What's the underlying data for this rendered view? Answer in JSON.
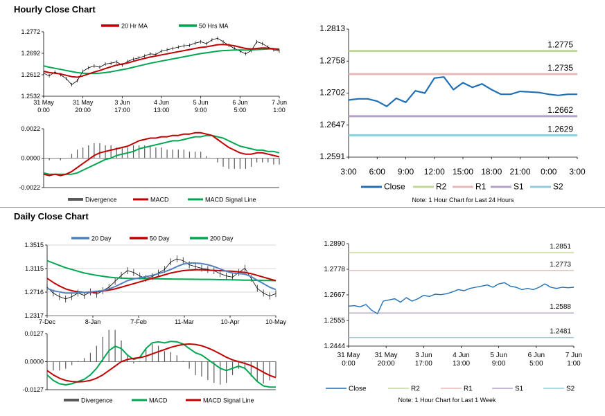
{
  "sections": {
    "hourly": "Hourly Close Chart",
    "daily": "Daily Close Chart"
  },
  "colors": {
    "ma_red": "#c00000",
    "ma_green": "#00a650",
    "ma_blue": "#4f81bd",
    "close_blue": "#1f6fb5",
    "r2": "#c3d69b",
    "r1": "#e6b9b8",
    "s1": "#b3a2c7",
    "s2": "#93cddd",
    "divergence": "#595959"
  },
  "chart_data": [
    {
      "id": "hourly-price",
      "type": "line",
      "title": "",
      "ylim": [
        1.2532,
        1.2772
      ],
      "yticks": [
        "1.2772",
        "1.2692",
        "1.2612",
        "1.2532"
      ],
      "xticks": [
        "31 May\n0:00",
        "31 May\n20:00",
        "3 Jun\n17:00",
        "4 Jun\n13:00",
        "5 Jun\n9:00",
        "6 Jun\n5:00",
        "7 Jun\n1:00"
      ],
      "legend": [
        "20 Hr MA",
        "50 Hrs MA"
      ],
      "legend_position": "top",
      "series": [
        {
          "name": "Price",
          "values": [
            1.2618,
            1.2608,
            1.2622,
            1.2612,
            1.2598,
            1.2575,
            1.259,
            1.2625,
            1.2638,
            1.2645,
            1.264,
            1.2652,
            1.2655,
            1.266,
            1.2648,
            1.2662,
            1.267,
            1.2675,
            1.2682,
            1.269,
            1.2688,
            1.27,
            1.2705,
            1.271,
            1.2715,
            1.272,
            1.2722,
            1.273,
            1.2735,
            1.2728,
            1.2742,
            1.2748,
            1.2735,
            1.2722,
            1.271,
            1.27,
            1.269,
            1.2702,
            1.2735,
            1.2728,
            1.2715,
            1.2705,
            1.27
          ]
        },
        {
          "name": "20 Hr MA",
          "values": [
            1.2625,
            1.262,
            1.2618,
            1.2615,
            1.261,
            1.2605,
            1.2603,
            1.2608,
            1.2615,
            1.2622,
            1.2628,
            1.2635,
            1.2642,
            1.2648,
            1.2652,
            1.2656,
            1.2662,
            1.2668,
            1.2673,
            1.2678,
            1.2682,
            1.2686,
            1.269,
            1.2694,
            1.2698,
            1.2702,
            1.2706,
            1.271,
            1.2714,
            1.2716,
            1.272,
            1.2724,
            1.2725,
            1.2723,
            1.272,
            1.2715,
            1.271,
            1.2708,
            1.271,
            1.2712,
            1.2711,
            1.2709,
            1.2706
          ]
        },
        {
          "name": "50 Hrs MA",
          "values": [
            1.2645,
            1.264,
            1.2636,
            1.2632,
            1.2628,
            1.2624,
            1.262,
            1.2618,
            1.2617,
            1.2617,
            1.2618,
            1.262,
            1.2623,
            1.2627,
            1.2631,
            1.2635,
            1.264,
            1.2645,
            1.265,
            1.2655,
            1.2659,
            1.2663,
            1.2667,
            1.2671,
            1.2675,
            1.2679,
            1.2683,
            1.2687,
            1.2691,
            1.2694,
            1.2697,
            1.27,
            1.2702,
            1.2703,
            1.2704,
            1.2704,
            1.2704,
            1.2705,
            1.2706,
            1.2707,
            1.2708,
            1.2708,
            1.2708
          ]
        }
      ]
    },
    {
      "id": "hourly-macd",
      "type": "line",
      "ylim": [
        -0.0022,
        0.0022
      ],
      "yticks": [
        "0.0022",
        "0.0000",
        "-0.0022"
      ],
      "legend": [
        "Divergence",
        "MACD",
        "MACD Signal Line"
      ],
      "legend_position": "bottom",
      "series": [
        {
          "name": "MACD",
          "values": [
            -0.0012,
            -0.0013,
            -0.0012,
            -0.0013,
            -0.0012,
            -0.001,
            -0.0007,
            -0.0004,
            -0.0001,
            0.0002,
            0.0004,
            0.0005,
            0.0006,
            0.0007,
            0.0008,
            0.0009,
            0.0011,
            0.0013,
            0.0014,
            0.0015,
            0.0015,
            0.0016,
            0.0016,
            0.0017,
            0.0017,
            0.0018,
            0.0018,
            0.0019,
            0.0019,
            0.0018,
            0.0017,
            0.0014,
            0.0011,
            0.0008,
            0.0006,
            0.0004,
            0.0003,
            0.0003,
            0.0004,
            0.0004,
            0.0003,
            0.0002,
            0.0001
          ]
        },
        {
          "name": "MACD Signal Line",
          "values": [
            -0.0011,
            -0.0012,
            -0.0012,
            -0.0012,
            -0.0012,
            -0.0012,
            -0.0011,
            -0.0009,
            -0.0007,
            -0.0005,
            -0.0003,
            -0.0001,
            0.0,
            0.0002,
            0.0003,
            0.0004,
            0.0005,
            0.0007,
            0.0008,
            0.0009,
            0.001,
            0.0011,
            0.0012,
            0.0013,
            0.0013,
            0.0014,
            0.0015,
            0.0016,
            0.0016,
            0.0017,
            0.0017,
            0.0016,
            0.0015,
            0.0013,
            0.0011,
            0.0009,
            0.0008,
            0.0007,
            0.0006,
            0.0006,
            0.0005,
            0.0005,
            0.0004
          ]
        }
      ]
    },
    {
      "id": "hourly-pivot",
      "type": "line",
      "ylim": [
        1.2591,
        1.2813
      ],
      "yticks": [
        "1.2813",
        "1.2758",
        "1.2702",
        "1.2647",
        "1.2591"
      ],
      "xticks": [
        "3:00",
        "6:00",
        "9:00",
        "12:00",
        "15:00",
        "18:00",
        "21:00",
        "0:00",
        "3:00"
      ],
      "legend": [
        "Close",
        "R2",
        "R1",
        "S1",
        "S2"
      ],
      "note": "Note: 1 Hour Chart for Last 24 Hours",
      "levels": [
        {
          "name": "R2",
          "value": 1.2775,
          "label": "1.2775"
        },
        {
          "name": "R1",
          "value": 1.2735,
          "label": "1.2735"
        },
        {
          "name": "S1",
          "value": 1.2662,
          "label": "1.2662"
        },
        {
          "name": "S2",
          "value": 1.2629,
          "label": "1.2629"
        }
      ],
      "series": [
        {
          "name": "Close",
          "values": [
            1.269,
            1.2692,
            1.2692,
            1.2688,
            1.2679,
            1.2693,
            1.2686,
            1.2706,
            1.2702,
            1.2728,
            1.273,
            1.2708,
            1.272,
            1.2712,
            1.2718,
            1.2708,
            1.27,
            1.27,
            1.2705,
            1.2704,
            1.2703,
            1.27,
            1.2698,
            1.27,
            1.27
          ]
        }
      ]
    },
    {
      "id": "daily-price",
      "type": "line",
      "ylim": [
        1.2317,
        1.3515
      ],
      "yticks": [
        "1.3515",
        "1.3115",
        "1.2716",
        "1.2317"
      ],
      "xticks": [
        "7-Dec",
        "8-Jan",
        "7-Feb",
        "11-Mar",
        "10-Apr",
        "10-May"
      ],
      "legend": [
        "20 Day",
        "50 Day",
        "200 Day"
      ],
      "legend_position": "top",
      "series": [
        {
          "name": "Price",
          "values": [
            1.28,
            1.27,
            1.264,
            1.26,
            1.264,
            1.27,
            1.266,
            1.272,
            1.268,
            1.274,
            1.28,
            1.29,
            1.3,
            1.308,
            1.305,
            1.299,
            1.295,
            1.298,
            1.304,
            1.31,
            1.323,
            1.328,
            1.325,
            1.318,
            1.315,
            1.312,
            1.31,
            1.308,
            1.303,
            1.299,
            1.297,
            1.305,
            1.312,
            1.295,
            1.278,
            1.27,
            1.265,
            1.269
          ]
        },
        {
          "name": "20 Day",
          "values": [
            1.278,
            1.274,
            1.272,
            1.27,
            1.27,
            1.2705,
            1.271,
            1.272,
            1.273,
            1.274,
            1.277,
            1.281,
            1.286,
            1.291,
            1.294,
            1.296,
            1.298,
            1.3,
            1.303,
            1.306,
            1.31,
            1.315,
            1.319,
            1.321,
            1.321,
            1.32,
            1.318,
            1.315,
            1.311,
            1.307,
            1.304,
            1.303,
            1.302,
            1.298,
            1.292,
            1.286,
            1.28,
            1.276
          ]
        },
        {
          "name": "50 Day",
          "values": [
            1.295,
            1.288,
            1.282,
            1.277,
            1.274,
            1.272,
            1.271,
            1.271,
            1.272,
            1.2735,
            1.275,
            1.277,
            1.28,
            1.283,
            1.286,
            1.289,
            1.292,
            1.295,
            1.298,
            1.301,
            1.304,
            1.306,
            1.308,
            1.309,
            1.3095,
            1.3095,
            1.309,
            1.3085,
            1.308,
            1.3075,
            1.307,
            1.306,
            1.305,
            1.303,
            1.3,
            1.297,
            1.294,
            1.291
          ]
        },
        {
          "name": "200 Day",
          "values": [
            1.325,
            1.321,
            1.317,
            1.313,
            1.31,
            1.307,
            1.304,
            1.302,
            1.3,
            1.2985,
            1.297,
            1.296,
            1.2955,
            1.295,
            1.2948,
            1.2946,
            1.2944,
            1.2943,
            1.2942,
            1.294,
            1.2938,
            1.2937,
            1.2936,
            1.2935,
            1.2934,
            1.2933,
            1.2932,
            1.293,
            1.2928,
            1.2926,
            1.2924,
            1.2922,
            1.292,
            1.2918,
            1.2916,
            1.2914,
            1.2912,
            1.291
          ]
        }
      ]
    },
    {
      "id": "daily-macd",
      "type": "line",
      "ylim": [
        -0.0127,
        0.0127
      ],
      "yticks": [
        "0.0127",
        "0.0000",
        "-0.0127"
      ],
      "legend": [
        "Divergence",
        "MACD",
        "MACD Signal Line"
      ],
      "legend_position": "bottom",
      "series": [
        {
          "name": "MACD",
          "values": [
            -0.006,
            -0.0085,
            -0.01,
            -0.0105,
            -0.01,
            -0.009,
            -0.008,
            -0.006,
            -0.003,
            0.001,
            0.005,
            0.007,
            0.006,
            0.003,
            0.001,
            0.002,
            0.006,
            0.0085,
            0.009,
            0.0085,
            0.0092,
            0.009,
            0.008,
            0.006,
            0.004,
            0.003,
            0.001,
            -0.001,
            -0.003,
            -0.004,
            -0.003,
            -0.002,
            -0.003,
            -0.006,
            -0.009,
            -0.011,
            -0.0115,
            -0.0115
          ]
        },
        {
          "name": "MACD Signal Line",
          "values": [
            -0.004,
            -0.006,
            -0.0075,
            -0.0085,
            -0.009,
            -0.0092,
            -0.009,
            -0.0085,
            -0.0075,
            -0.006,
            -0.004,
            -0.002,
            0.0,
            0.001,
            0.0015,
            0.0018,
            0.0025,
            0.0035,
            0.0045,
            0.0055,
            0.0065,
            0.0072,
            0.0078,
            0.008,
            0.0078,
            0.0072,
            0.0062,
            0.005,
            0.0035,
            0.002,
            0.0008,
            0.0,
            -0.0008,
            -0.0018,
            -0.0032,
            -0.0048,
            -0.0062,
            -0.0072
          ]
        }
      ]
    },
    {
      "id": "weekly-pivot",
      "type": "line",
      "ylim": [
        1.2444,
        1.289
      ],
      "yticks": [
        "1.2890",
        "1.2778",
        "1.2667",
        "1.2555",
        "1.2444"
      ],
      "xticks": [
        "31 May\n0:00",
        "31 May\n20:00",
        "3 Jun\n17:00",
        "4 Jun\n13:00",
        "5 Jun\n9:00",
        "6 Jun\n5:00",
        "7 Jun\n1:00"
      ],
      "legend": [
        "Close",
        "R2",
        "R1",
        "S1",
        "S2"
      ],
      "note": "Note: 1 Hour Chart for Last 1 Week",
      "levels": [
        {
          "name": "R2",
          "value": 1.2851,
          "label": "1.2851"
        },
        {
          "name": "R1",
          "value": 1.2773,
          "label": "1.2773"
        },
        {
          "name": "S1",
          "value": 1.2588,
          "label": "1.2588"
        },
        {
          "name": "S2",
          "value": 1.2481,
          "label": "1.2481"
        }
      ],
      "series": [
        {
          "name": "Close",
          "values": [
            1.2618,
            1.262,
            1.2615,
            1.2625,
            1.26,
            1.2585,
            1.264,
            1.2645,
            1.265,
            1.2635,
            1.2655,
            1.264,
            1.265,
            1.2665,
            1.266,
            1.267,
            1.2668,
            1.2672,
            1.268,
            1.269,
            1.2685,
            1.2695,
            1.27,
            1.2705,
            1.271,
            1.27,
            1.2715,
            1.272,
            1.2705,
            1.27,
            1.269,
            1.2695,
            1.269,
            1.27,
            1.2715,
            1.27,
            1.2695,
            1.27,
            1.2698,
            1.27
          ]
        }
      ]
    }
  ]
}
